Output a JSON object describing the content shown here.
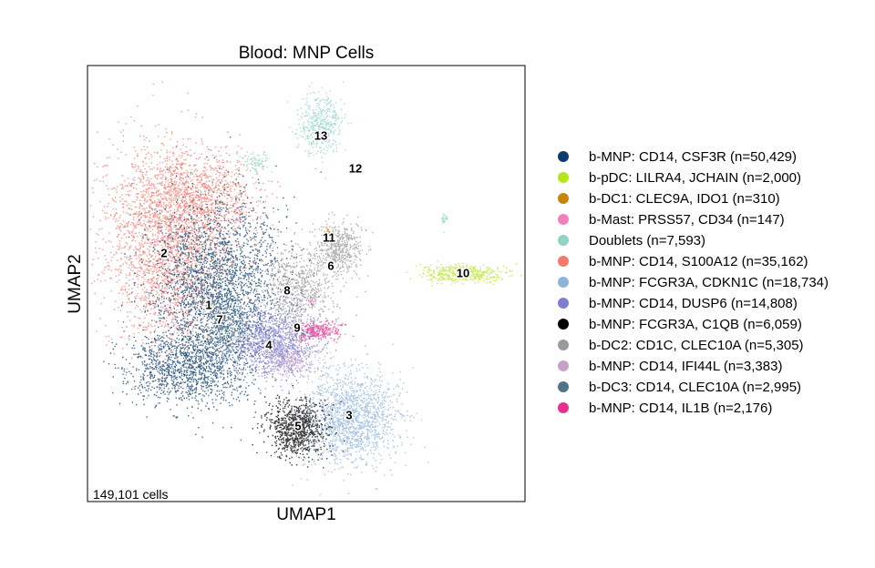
{
  "chart_data": {
    "type": "scatter",
    "title": "Blood: MNP Cells",
    "xlabel": "UMAP1",
    "ylabel": "UMAP2",
    "cell_count_text": "149,101 cells",
    "legend_position": "right",
    "grid": false,
    "legend": [
      {
        "label": "b-MNP: CD14, CSF3R (n=50,429)",
        "color": "#0a3d6b"
      },
      {
        "label": "b-pDC: LILRA4, JCHAIN (n=2,000)",
        "color": "#b5e61d"
      },
      {
        "label": "b-DC1: CLEC9A, IDO1 (n=310)",
        "color": "#c8860a"
      },
      {
        "label": "b-Mast: PRSS57, CD34 (n=147)",
        "color": "#f47fbf"
      },
      {
        "label": "Doublets (n=7,593)",
        "color": "#8fd3c5"
      },
      {
        "label": "b-MNP: CD14, S100A12 (n=35,162)",
        "color": "#f27b6e"
      },
      {
        "label": "b-MNP: FCGR3A, CDKN1C (n=18,734)",
        "color": "#8fb4d9"
      },
      {
        "label": "b-MNP: CD14, DUSP6 (n=14,808)",
        "color": "#7f7fcf"
      },
      {
        "label": "b-MNP: FCGR3A, C1QB (n=6,059)",
        "color": "#000000"
      },
      {
        "label": "b-DC2: CD1C, CLEC10A (n=5,305)",
        "color": "#9a9a9a"
      },
      {
        "label": "b-MNP: CD14, IFI44L (n=3,383)",
        "color": "#c9a0c8"
      },
      {
        "label": "b-DC3: CD14, CLEC10A (n=2,995)",
        "color": "#4f7586"
      },
      {
        "label": "b-MNP: CD14, IL1B (n=2,176)",
        "color": "#e7308d"
      }
    ],
    "cluster_labels": [
      "1",
      "2",
      "3",
      "4",
      "5",
      "6",
      "7",
      "8",
      "9",
      "10",
      "11",
      "12",
      "13"
    ]
  }
}
